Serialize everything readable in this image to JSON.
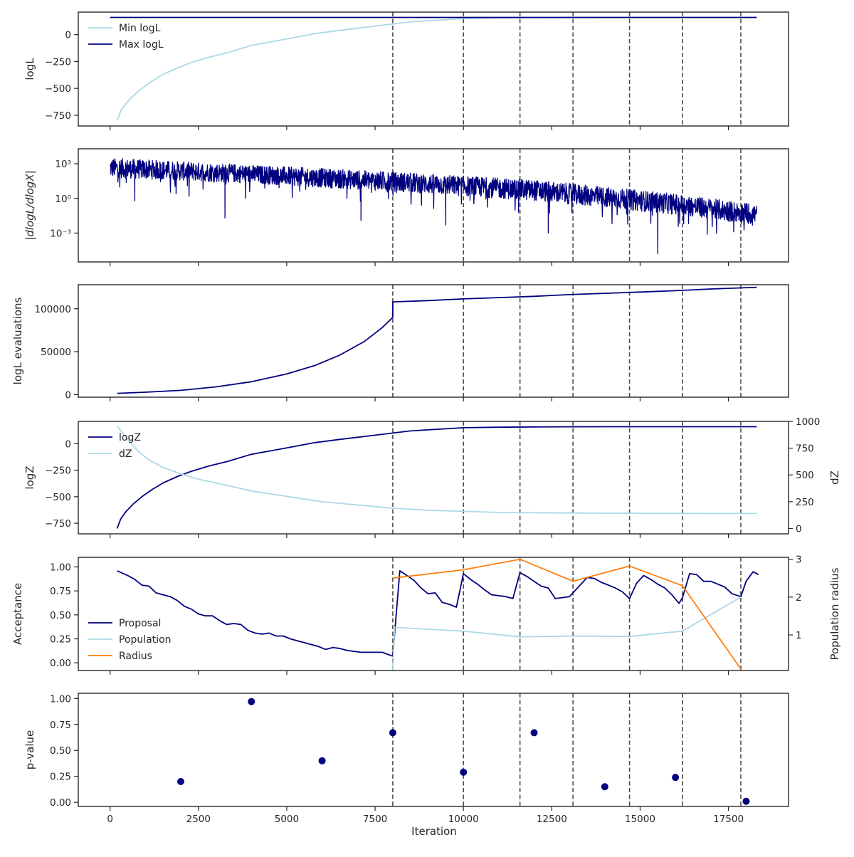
{
  "colors": {
    "navy": "#000080",
    "light_blue": "#add8e6",
    "orange": "#ff7f0e",
    "dashed": "#4d4d4d",
    "frame": "#262626"
  },
  "x_axis": {
    "label": "Iteration",
    "lim": [
      -900,
      19200
    ],
    "ticks": [
      0,
      2500,
      5000,
      7500,
      10000,
      12500,
      15000,
      17500
    ],
    "tick_labels": [
      "0",
      "2500",
      "5000",
      "7500",
      "10000",
      "12500",
      "15000",
      "17500"
    ]
  },
  "vlines": [
    8000,
    10000,
    11600,
    13100,
    14700,
    16200,
    17850
  ],
  "chart_data": [
    {
      "type": "line",
      "ylabel": "logL",
      "ylim": [
        -850,
        210
      ],
      "yticks": [
        -750,
        -500,
        -250,
        0
      ],
      "ytick_labels": [
        "−750",
        "−500",
        "−250",
        "0"
      ],
      "legend": "top-left",
      "series": [
        {
          "name": "Min logL",
          "color": "#add8e6",
          "x": [
            200,
            300,
            450,
            650,
            900,
            1200,
            1500,
            1900,
            2300,
            2800,
            3300,
            4000,
            5000,
            5800,
            6500,
            7500,
            8500,
            9500,
            10000,
            11000,
            12000,
            13000,
            14000,
            15000,
            16000,
            17000,
            18300
          ],
          "y": [
            -800,
            -710,
            -640,
            -570,
            -500,
            -430,
            -370,
            -310,
            -260,
            -210,
            -170,
            -100,
            -40,
            10,
            40,
            80,
            120,
            140,
            150,
            155,
            158,
            159,
            160,
            160,
            160,
            160,
            160
          ]
        },
        {
          "name": "Max logL",
          "color": "#000080",
          "x": [
            0,
            18300
          ],
          "y": [
            160,
            160
          ]
        }
      ]
    },
    {
      "type": "line",
      "ylabel": "|dlogL/dlogX|",
      "scale": "log",
      "ylim_exp": [
        -5.5,
        4.3
      ],
      "yticks_exp": [
        3,
        0,
        -3
      ],
      "ytick_labels": [
        "10³",
        "10⁰",
        "10⁻³"
      ],
      "envelope": {
        "x": [
          0,
          4000,
          8000,
          12000,
          16000,
          18300
        ],
        "upper_exp": [
          3.5,
          2.9,
          2.3,
          1.6,
          0.4,
          -0.5
        ],
        "lower_exp": [
          1.8,
          1.3,
          0.6,
          -0.2,
          -1.4,
          -2.3
        ]
      },
      "notable_points": [
        {
          "x": 700,
          "y_exp": -0.2
        },
        {
          "x": 3250,
          "y_exp": -1.7
        },
        {
          "x": 7100,
          "y_exp": -1.9
        },
        {
          "x": 9500,
          "y_exp": -2.3
        },
        {
          "x": 12400,
          "y_exp": -3.0
        },
        {
          "x": 15500,
          "y_exp": -4.8
        },
        {
          "x": 16900,
          "y_exp": -3.1
        },
        {
          "x": 17650,
          "y_exp": -2.9
        }
      ]
    },
    {
      "type": "line",
      "ylabel": "logL evaluations",
      "ylim": [
        -3000,
        128000
      ],
      "yticks": [
        0,
        50000,
        100000
      ],
      "ytick_labels": [
        "0",
        "50000",
        "100000"
      ],
      "series": [
        {
          "name": "",
          "color": "#000080",
          "x": [
            200,
            1000,
            2000,
            3000,
            4000,
            5000,
            5800,
            6500,
            7200,
            7700,
            8000,
            8001,
            9000,
            10000,
            11000,
            12000,
            13000,
            14000,
            15000,
            16000,
            17000,
            18300
          ],
          "y": [
            1500,
            2800,
            5000,
            9000,
            15000,
            24000,
            34000,
            46000,
            62000,
            78000,
            90000,
            108000,
            109500,
            111500,
            113000,
            114500,
            116500,
            118000,
            119500,
            121000,
            123000,
            125000
          ]
        }
      ]
    },
    {
      "type": "line",
      "ylabel": "logZ",
      "ylim": [
        -850,
        210
      ],
      "yticks": [
        -750,
        -500,
        -250,
        0
      ],
      "ytick_labels": [
        "−750",
        "−500",
        "−250",
        "0"
      ],
      "y2label": "dZ",
      "y2lim": [
        -50,
        1000
      ],
      "y2ticks": [
        0,
        250,
        500,
        750,
        1000
      ],
      "y2tick_labels": [
        "0",
        "250",
        "500",
        "750",
        "1000"
      ],
      "legend": "top-left",
      "series": [
        {
          "name": "logZ",
          "color": "#000080",
          "axis": "left",
          "x": [
            200,
            300,
            450,
            650,
            900,
            1200,
            1500,
            1900,
            2300,
            2800,
            3300,
            4000,
            5000,
            5800,
            6500,
            7500,
            8500,
            9500,
            10000,
            11000,
            12000,
            13000,
            14000,
            15000,
            16000,
            17000,
            18300
          ],
          "y": [
            -800,
            -710,
            -640,
            -570,
            -500,
            -430,
            -370,
            -310,
            -260,
            -210,
            -170,
            -100,
            -40,
            10,
            40,
            80,
            120,
            140,
            150,
            155,
            158,
            159,
            160,
            160,
            160,
            160,
            160
          ]
        },
        {
          "name": "dZ",
          "color": "#add8e6",
          "axis": "right",
          "x": [
            200,
            400,
            600,
            800,
            1100,
            1500,
            2000,
            2500,
            3200,
            4000,
            5000,
            6000,
            7000,
            8000,
            9000,
            10000,
            11000,
            12000,
            13000,
            14000,
            15000,
            16000,
            17000,
            18300
          ],
          "y": [
            960,
            870,
            790,
            720,
            640,
            570,
            510,
            460,
            410,
            350,
            300,
            250,
            220,
            190,
            170,
            160,
            150,
            147,
            145,
            143,
            142,
            141,
            140,
            140
          ]
        }
      ]
    },
    {
      "type": "line",
      "ylabel": "Acceptance",
      "ylim": [
        -0.08,
        1.1
      ],
      "yticks": [
        0,
        0.25,
        0.5,
        0.75,
        1.0
      ],
      "ytick_labels": [
        "0.00",
        "0.25",
        "0.50",
        "0.75",
        "1.00"
      ],
      "y2label": "Population radius",
      "y2lim": [
        0.06,
        3.05
      ],
      "y2ticks": [
        1,
        2,
        3
      ],
      "y2tick_labels": [
        "1",
        "2",
        "3"
      ],
      "legend": "lower-left",
      "series": [
        {
          "name": "Proposal",
          "color": "#000080",
          "axis": "left",
          "x": [
            200,
            500,
            700,
            900,
            1100,
            1300,
            1500,
            1700,
            1900,
            2100,
            2300,
            2500,
            2700,
            2900,
            3100,
            3300,
            3500,
            3700,
            3900,
            4100,
            4300,
            4500,
            4700,
            4900,
            5100,
            5300,
            5500,
            5700,
            5900,
            6100,
            6300,
            6500,
            6700,
            6900,
            7100,
            7300,
            7500,
            7700,
            7850,
            8000,
            8200,
            8400,
            8600,
            8800,
            9000,
            9200,
            9400,
            9600,
            9800,
            10000,
            10200,
            10400,
            10600,
            10800,
            11000,
            11200,
            11400,
            11600,
            11800,
            12000,
            12200,
            12400,
            12600,
            12800,
            13000,
            13100,
            13300,
            13500,
            13700,
            13900,
            14100,
            14300,
            14500,
            14700,
            14900,
            15100,
            15300,
            15500,
            15700,
            15900,
            16100,
            16200,
            16400,
            16600,
            16800,
            17000,
            17200,
            17400,
            17600,
            17850,
            18000,
            18200,
            18350
          ],
          "y": [
            0.96,
            0.91,
            0.87,
            0.81,
            0.8,
            0.73,
            0.71,
            0.69,
            0.65,
            0.59,
            0.56,
            0.51,
            0.49,
            0.49,
            0.44,
            0.4,
            0.41,
            0.4,
            0.34,
            0.31,
            0.3,
            0.31,
            0.28,
            0.28,
            0.25,
            0.23,
            0.21,
            0.19,
            0.17,
            0.14,
            0.16,
            0.15,
            0.13,
            0.12,
            0.11,
            0.11,
            0.11,
            0.11,
            0.09,
            0.07,
            0.96,
            0.91,
            0.86,
            0.78,
            0.72,
            0.73,
            0.63,
            0.61,
            0.58,
            0.93,
            0.87,
            0.82,
            0.76,
            0.71,
            0.7,
            0.69,
            0.67,
            0.94,
            0.9,
            0.85,
            0.8,
            0.78,
            0.67,
            0.68,
            0.69,
            0.73,
            0.81,
            0.89,
            0.88,
            0.84,
            0.81,
            0.78,
            0.74,
            0.67,
            0.83,
            0.91,
            0.87,
            0.82,
            0.78,
            0.71,
            0.62,
            0.68,
            0.93,
            0.92,
            0.85,
            0.85,
            0.82,
            0.79,
            0.72,
            0.69,
            0.85,
            0.95,
            0.92
          ]
        },
        {
          "name": "Population",
          "color": "#add8e6",
          "axis": "right",
          "x": [
            8000,
            8050,
            10000,
            11600,
            13100,
            14700,
            16200,
            17850
          ],
          "y": [
            0.06,
            1.2,
            1.1,
            0.95,
            0.97,
            0.96,
            1.1,
            2.0
          ]
        },
        {
          "name": "Radius",
          "color": "#ff7f0e",
          "axis": "right",
          "x": [
            8000,
            10000,
            11600,
            13100,
            14700,
            16200,
            17850
          ],
          "y": [
            2.5,
            2.72,
            3.0,
            2.42,
            2.82,
            2.3,
            0.1
          ]
        }
      ]
    },
    {
      "type": "scatter",
      "ylabel": "p-value",
      "ylim": [
        -0.04,
        1.05
      ],
      "yticks": [
        0,
        0.25,
        0.5,
        0.75,
        1.0
      ],
      "ytick_labels": [
        "0.00",
        "0.25",
        "0.50",
        "0.75",
        "1.00"
      ],
      "series": [
        {
          "name": "",
          "color": "#000080",
          "x": [
            2000,
            4000,
            6000,
            8000,
            10000,
            12000,
            14000,
            16000,
            18000
          ],
          "y": [
            0.2,
            0.97,
            0.4,
            0.67,
            0.29,
            0.67,
            0.15,
            0.24,
            0.01
          ]
        }
      ]
    }
  ],
  "legends": [
    {
      "panel": 0,
      "items": [
        "Min logL",
        "Max logL"
      ]
    },
    {
      "panel": 3,
      "items": [
        "logZ",
        "dZ"
      ]
    },
    {
      "panel": 4,
      "items": [
        "Proposal",
        "Population",
        "Radius"
      ]
    }
  ]
}
